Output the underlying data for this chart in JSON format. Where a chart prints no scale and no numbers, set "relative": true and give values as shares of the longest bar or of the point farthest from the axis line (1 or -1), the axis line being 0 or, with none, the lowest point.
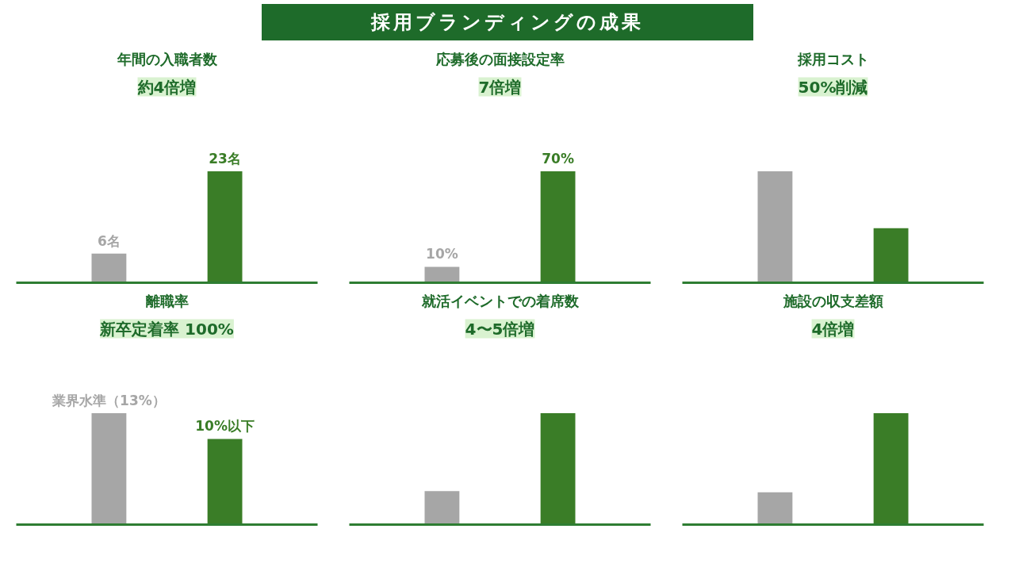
{
  "chart_data": [
    {
      "type": "other",
      "title": "採用ブランディングの成果"
    },
    {
      "type": "bar",
      "title": "年間の入職者数",
      "categories": [
        null,
        null
      ],
      "values": [
        6,
        23
      ],
      "colors": [
        "#a6a6a6",
        "#3a7d27"
      ],
      "value_labels": [
        "6名",
        "23名"
      ],
      "annotations": [
        "約4倍増"
      ],
      "tick_labels": false
    },
    {
      "type": "bar",
      "title": "応募後の面接設定率",
      "categories": [
        null,
        null
      ],
      "values": [
        10,
        70
      ],
      "colors": [
        "#a6a6a6",
        "#3a7d27"
      ],
      "value_labels": [
        "10%",
        "70%"
      ],
      "annotations": [
        "7倍増"
      ],
      "tick_labels": false
    },
    {
      "type": "bar",
      "title": "採用コスト",
      "categories": [
        null,
        null
      ],
      "values": [
        1,
        0.49
      ],
      "colors": [
        "#a6a6a6",
        "#3a7d27"
      ],
      "relative": true,
      "annotations": [
        "50%削減"
      ],
      "tick_labels": false
    },
    {
      "type": "bar",
      "title": "離職率",
      "categories": [
        null,
        null
      ],
      "values": [
        13,
        10
      ],
      "colors": [
        "#a6a6a6",
        "#3a7d27"
      ],
      "value_labels": [
        "業界水準（13%）",
        "10%以下"
      ],
      "annotations": [
        "新卒定着率 100%"
      ],
      "tick_labels": false
    },
    {
      "type": "bar",
      "title": "就活イベントでの着席数",
      "categories": [
        null,
        null
      ],
      "values": [
        0.3,
        1
      ],
      "colors": [
        "#a6a6a6",
        "#3a7d27"
      ],
      "relative": true,
      "annotations": [
        "4〜5倍増"
      ],
      "tick_labels": false
    },
    {
      "type": "bar",
      "title": "施設の収支差額",
      "categories": [
        null,
        null
      ],
      "values": [
        0.29,
        1
      ],
      "colors": [
        "#a6a6a6",
        "#3a7d27"
      ],
      "relative": true,
      "annotations": [
        "4倍増"
      ],
      "tick_labels": false
    }
  ]
}
